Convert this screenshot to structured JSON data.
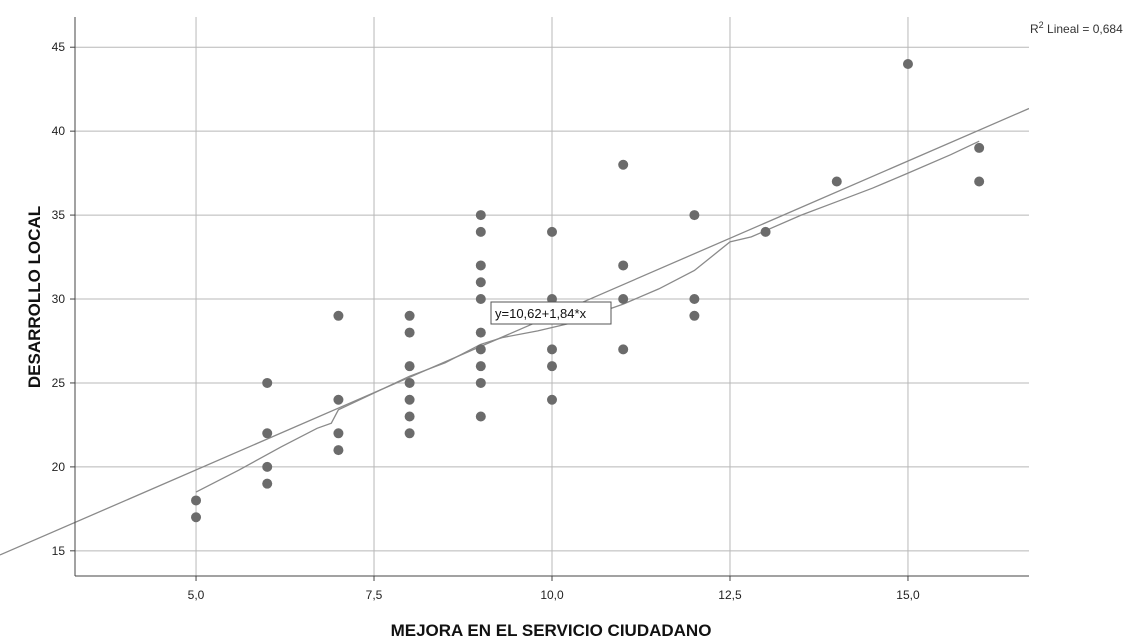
{
  "chart_data": {
    "type": "scatter",
    "title": "",
    "xlabel": "MEJORA EN EL SERVICIO CIUDADANO",
    "ylabel": "DESARROLLO LOCAL",
    "xlim": [
      3.3,
      16.7
    ],
    "ylim": [
      13.5,
      46.8
    ],
    "x_ticks": [
      5.0,
      7.5,
      10.0,
      12.5,
      15.0
    ],
    "x_tick_labels": [
      "5,0",
      "7,5",
      "10,0",
      "12,5",
      "15,0"
    ],
    "y_ticks": [
      15,
      20,
      25,
      30,
      35,
      40,
      45
    ],
    "y_tick_labels": [
      "15",
      "20",
      "25",
      "30",
      "35",
      "40",
      "45"
    ],
    "grid": true,
    "colors": {
      "points": "#6b6b6b",
      "lines": "#8a8a8a",
      "grid": "#b8b8b8",
      "axis": "#444444"
    },
    "points": [
      [
        5,
        18
      ],
      [
        5,
        17
      ],
      [
        6,
        25
      ],
      [
        6,
        22
      ],
      [
        6,
        20
      ],
      [
        6,
        19
      ],
      [
        7,
        29
      ],
      [
        7,
        24
      ],
      [
        7,
        22
      ],
      [
        7,
        21
      ],
      [
        8,
        29
      ],
      [
        8,
        28
      ],
      [
        8,
        26
      ],
      [
        8,
        25
      ],
      [
        8,
        24
      ],
      [
        8,
        23
      ],
      [
        8,
        22
      ],
      [
        9,
        35
      ],
      [
        9,
        34
      ],
      [
        9,
        32
      ],
      [
        9,
        31
      ],
      [
        9,
        30
      ],
      [
        9,
        28
      ],
      [
        9,
        27
      ],
      [
        9,
        26
      ],
      [
        9,
        25
      ],
      [
        9,
        23
      ],
      [
        10,
        34
      ],
      [
        10,
        30
      ],
      [
        10,
        29
      ],
      [
        10,
        27
      ],
      [
        10,
        26
      ],
      [
        10,
        24
      ],
      [
        11,
        38
      ],
      [
        11,
        32
      ],
      [
        11,
        30
      ],
      [
        11,
        27
      ],
      [
        12,
        35
      ],
      [
        12,
        30
      ],
      [
        12,
        29
      ],
      [
        13,
        34
      ],
      [
        14,
        37
      ],
      [
        15,
        44
      ],
      [
        16,
        39
      ],
      [
        16,
        37
      ]
    ],
    "fit_line": {
      "intercept": 10.62,
      "slope": 1.84,
      "label": "y=10,62+1,84*x",
      "x_range": [
        3.3,
        16.7
      ]
    },
    "loess_line": [
      [
        5.0,
        18.5
      ],
      [
        5.6,
        19.8
      ],
      [
        6.2,
        21.2
      ],
      [
        6.7,
        22.3
      ],
      [
        6.9,
        22.6
      ],
      [
        7.0,
        23.4
      ],
      [
        7.5,
        24.4
      ],
      [
        8.0,
        25.4
      ],
      [
        8.5,
        26.2
      ],
      [
        9.0,
        27.3
      ],
      [
        9.3,
        27.7
      ],
      [
        9.8,
        28.1
      ],
      [
        10.3,
        28.6
      ],
      [
        10.6,
        29.1
      ],
      [
        11.0,
        29.7
      ],
      [
        11.5,
        30.6
      ],
      [
        12.0,
        31.7
      ],
      [
        12.5,
        33.4
      ],
      [
        12.8,
        33.7
      ],
      [
        13.5,
        35.0
      ],
      [
        14.0,
        35.8
      ],
      [
        14.5,
        36.6
      ],
      [
        15.0,
        37.5
      ],
      [
        15.6,
        38.6
      ],
      [
        16.0,
        39.4
      ]
    ],
    "r_squared_label_prefix": "R",
    "r_squared_label_sup": "2",
    "r_squared_label_rest": " Lineal = 0,684"
  }
}
